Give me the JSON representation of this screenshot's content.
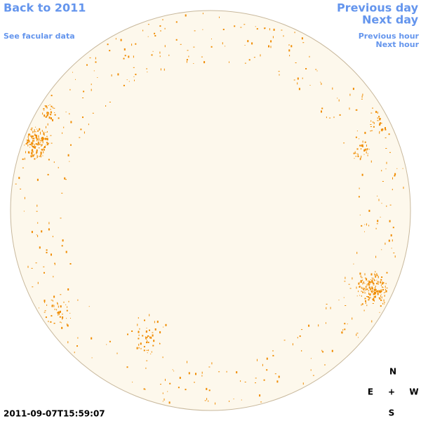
{
  "header": {
    "back_link": "Back to 2011",
    "facular_link": "See facular data",
    "previous_day": "Previous day",
    "next_day": "Next day",
    "previous_hour": "Previous hour",
    "next_hour": "Next hour"
  },
  "timestamp": "2011-09-07T15:59:07",
  "compass": {
    "north": "N",
    "east": "E",
    "center": "+",
    "west": "W",
    "south": "S"
  }
}
